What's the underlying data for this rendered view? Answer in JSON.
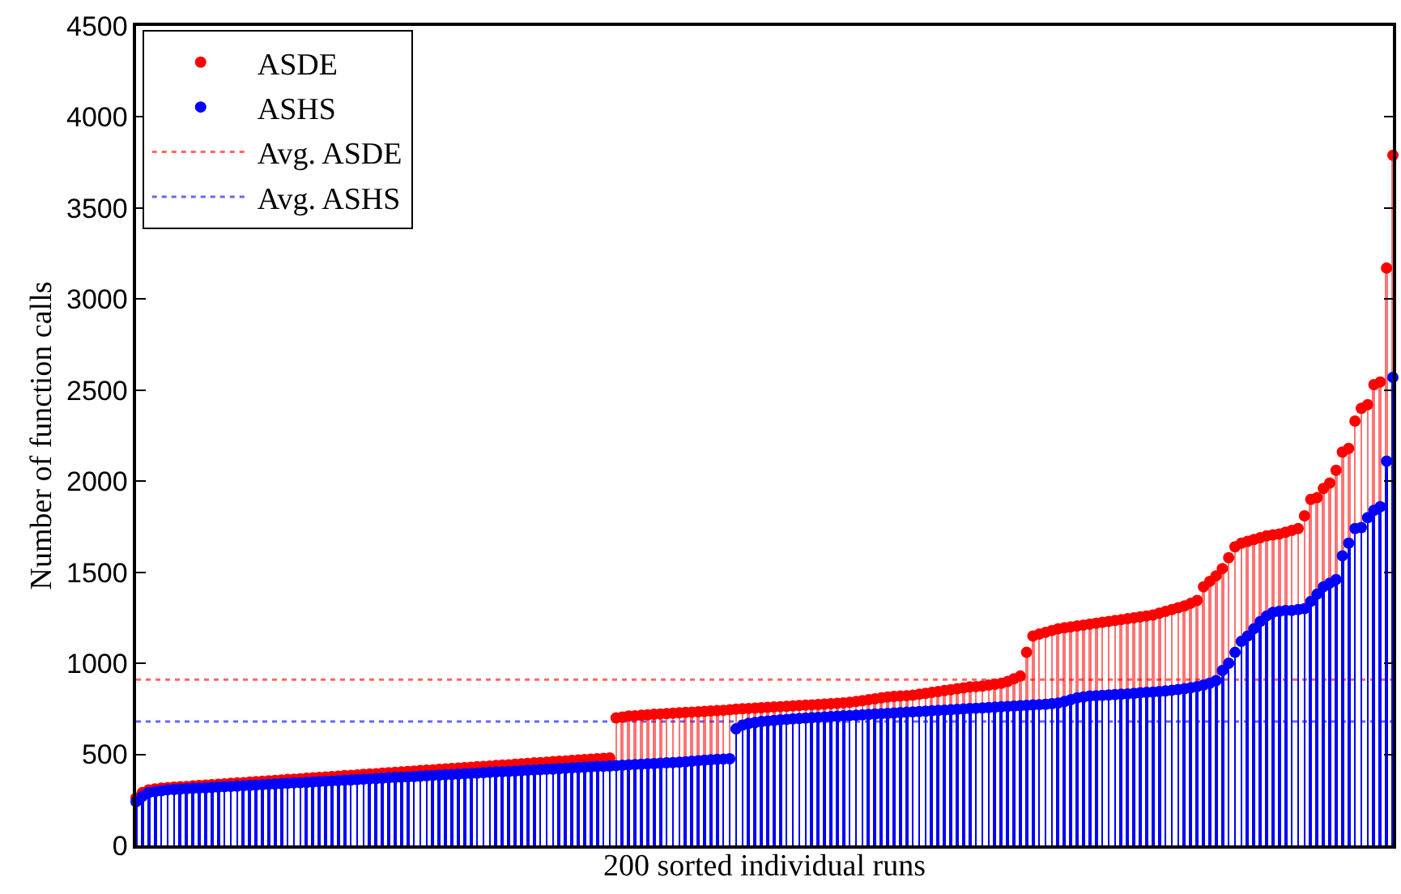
{
  "chart_data": {
    "type": "lollipop",
    "xlabel": "200 sorted individual runs",
    "ylabel": "Number of function calls",
    "categories": [
      null,
      null,
      null,
      null,
      null,
      null,
      null,
      null,
      null,
      null,
      null,
      null,
      null,
      null,
      null,
      null,
      null,
      null,
      null,
      null,
      null,
      null,
      null,
      null,
      null,
      null,
      null,
      null,
      null,
      null,
      null,
      null,
      null,
      null,
      null,
      null,
      null,
      null,
      null,
      null,
      null,
      null,
      null,
      null,
      null,
      null,
      null,
      null,
      null,
      null,
      null,
      null,
      null,
      null,
      null,
      null,
      null,
      null,
      null,
      null,
      null,
      null,
      null,
      null,
      null,
      null,
      null,
      null,
      null,
      null,
      null,
      null,
      null,
      null,
      null,
      null,
      null,
      null,
      null,
      null,
      null,
      null,
      null,
      null,
      null,
      null,
      null,
      null,
      null,
      null,
      null,
      null,
      null,
      null,
      null,
      null,
      null,
      null,
      null,
      null,
      null,
      null,
      null,
      null,
      null,
      null,
      null,
      null,
      null,
      null,
      null,
      null,
      null,
      null,
      null,
      null,
      null,
      null,
      null,
      null,
      null,
      null,
      null,
      null,
      null,
      null,
      null,
      null,
      null,
      null,
      null,
      null,
      null,
      null,
      null,
      null,
      null,
      null,
      null,
      null,
      null,
      null,
      null,
      null,
      null,
      null,
      null,
      null,
      null,
      null,
      null,
      null,
      null,
      null,
      null,
      null,
      null,
      null,
      null,
      null,
      null,
      null,
      null,
      null,
      null,
      null,
      null,
      null,
      null,
      null,
      null,
      null,
      null,
      null,
      null,
      null,
      null,
      null,
      null,
      null,
      null,
      null,
      null,
      null,
      null,
      null,
      null,
      null,
      null,
      null,
      null,
      null,
      null,
      null,
      null,
      null,
      null,
      null,
      null,
      null
    ],
    "series": [
      {
        "name": "ASDE",
        "color": "#ff0000",
        "values": [
          260,
          290,
          305,
          310,
          315,
          317,
          320,
          322,
          324,
          327,
          329,
          331,
          334,
          336,
          338,
          341,
          343,
          345,
          348,
          350,
          352,
          355,
          357,
          359,
          362,
          364,
          366,
          369,
          371,
          373,
          376,
          378,
          380,
          383,
          385,
          387,
          390,
          392,
          394,
          397,
          399,
          401,
          404,
          406,
          408,
          411,
          413,
          415,
          418,
          420,
          422,
          425,
          427,
          429,
          432,
          434,
          436,
          439,
          441,
          443,
          446,
          448,
          450,
          453,
          455,
          457,
          460,
          462,
          464,
          467,
          469,
          471,
          474,
          476,
          478,
          480,
          700,
          705,
          710,
          712,
          715,
          717,
          720,
          722,
          724,
          726,
          728,
          730,
          732,
          734,
          736,
          738,
          740,
          742,
          745,
          748,
          750,
          752,
          754,
          756,
          758,
          760,
          762,
          764,
          766,
          768,
          770,
          772,
          774,
          776,
          778,
          780,
          783,
          786,
          790,
          795,
          800,
          805,
          810,
          815,
          818,
          820,
          822,
          825,
          830,
          835,
          840,
          845,
          850,
          855,
          860,
          865,
          870,
          872,
          875,
          880,
          885,
          890,
          900,
          915,
          930,
          1060,
          1150,
          1160,
          1170,
          1180,
          1190,
          1195,
          1200,
          1205,
          1210,
          1215,
          1220,
          1225,
          1230,
          1235,
          1240,
          1245,
          1250,
          1255,
          1260,
          1265,
          1275,
          1285,
          1295,
          1305,
          1315,
          1330,
          1345,
          1420,
          1450,
          1480,
          1520,
          1580,
          1640,
          1660,
          1670,
          1680,
          1690,
          1700,
          1705,
          1710,
          1720,
          1730,
          1740,
          1810,
          1900,
          1910,
          1960,
          1990,
          2060,
          2160,
          2180,
          2330,
          2400,
          2420,
          2530,
          2545,
          3170,
          3790
        ]
      },
      {
        "name": "ASHS",
        "color": "#0000ff",
        "values": [
          240,
          270,
          290,
          295,
          300,
          305,
          307,
          309,
          311,
          313,
          314,
          316,
          318,
          320,
          322,
          324,
          326,
          328,
          329,
          331,
          333,
          335,
          337,
          339,
          341,
          343,
          344,
          346,
          348,
          350,
          352,
          354,
          356,
          358,
          359,
          361,
          363,
          365,
          367,
          369,
          371,
          373,
          374,
          376,
          378,
          380,
          382,
          384,
          386,
          388,
          389,
          391,
          393,
          395,
          397,
          399,
          401,
          403,
          404,
          406,
          408,
          410,
          412,
          414,
          416,
          418,
          419,
          421,
          423,
          425,
          427,
          429,
          431,
          433,
          434,
          436,
          438,
          440,
          442,
          444,
          446,
          448,
          449,
          451,
          453,
          455,
          457,
          459,
          462,
          465,
          468,
          470,
          472,
          474,
          476,
          640,
          660,
          670,
          675,
          680,
          683,
          686,
          689,
          692,
          695,
          697,
          699,
          701,
          703,
          705,
          707,
          709,
          711,
          713,
          715,
          717,
          719,
          721,
          723,
          725,
          727,
          729,
          731,
          733,
          735,
          737,
          739,
          741,
          743,
          745,
          747,
          749,
          751,
          753,
          755,
          757,
          759,
          761,
          763,
          765,
          767,
          769,
          771,
          773,
          775,
          778,
          782,
          790,
          800,
          810,
          815,
          820,
          822,
          824,
          826,
          828,
          830,
          832,
          835,
          838,
          840,
          842,
          845,
          848,
          852,
          856,
          860,
          866,
          872,
          880,
          890,
          905,
          960,
          1000,
          1060,
          1120,
          1150,
          1190,
          1230,
          1260,
          1280,
          1285,
          1290,
          1290,
          1295,
          1300,
          1340,
          1380,
          1420,
          1440,
          1460,
          1590,
          1660,
          1740,
          1745,
          1800,
          1840,
          1860,
          2110,
          2570
        ]
      }
    ],
    "ref_lines": [
      {
        "axis": "y",
        "value": 910,
        "label": "Avg. ASDE",
        "color": "#ff0000",
        "line_style": "dotted"
      },
      {
        "axis": "y",
        "value": 680,
        "label": "Avg. ASHS",
        "color": "#0000ff",
        "line_style": "dotted"
      }
    ],
    "ylim": [
      0,
      4500
    ],
    "yticks": [
      0,
      500,
      1000,
      1500,
      2000,
      2500,
      3000,
      3500,
      4000,
      4500
    ],
    "tick_labels": "y",
    "legend": "top left",
    "marker": "circle"
  }
}
